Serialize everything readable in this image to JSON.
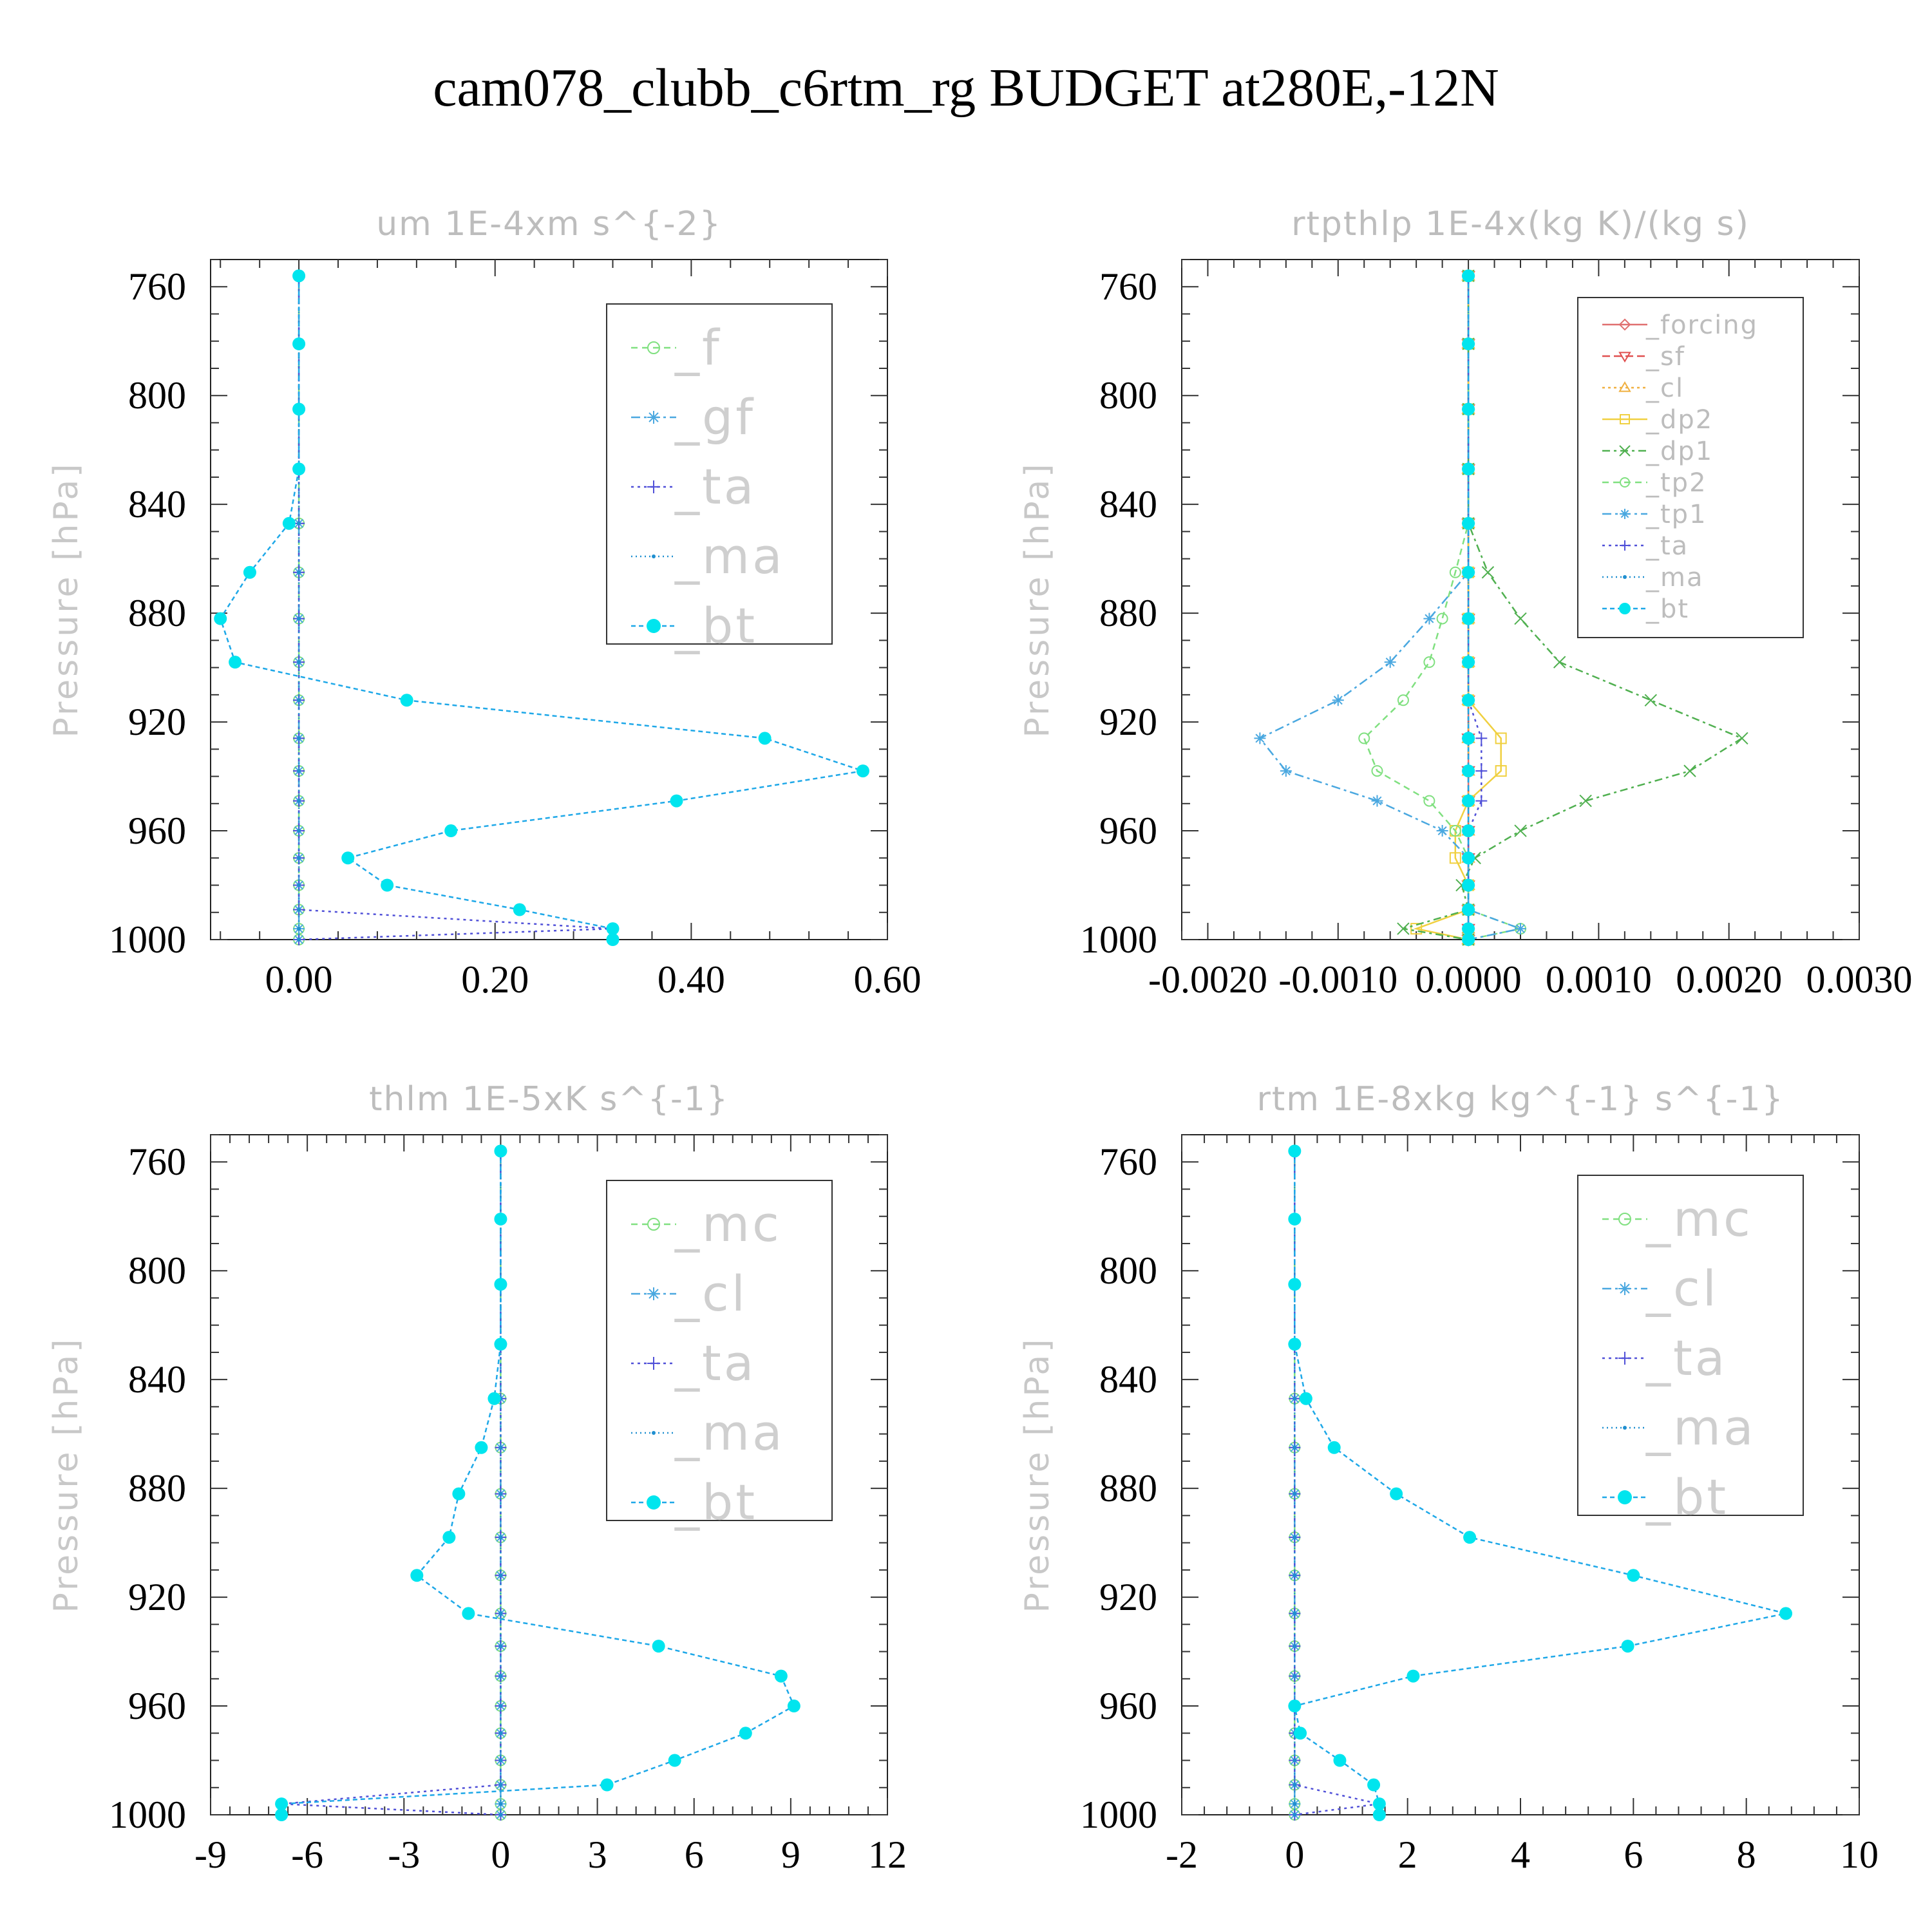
{
  "title": "cam078_clubb_c6rtm_rg  BUDGET at280E,-12N",
  "chart_data": [
    {
      "type": "line",
      "title": "um   1E-4xm s^{-2}",
      "ylabel": "Pressure [hPa]",
      "xlabel": "",
      "ylim": [
        750,
        1000
      ],
      "y_inverted": true,
      "xlim": [
        -0.09,
        0.6
      ],
      "xticks": [
        0,
        0.2,
        0.4,
        0.6
      ],
      "xtick_labels": [
        "0.00",
        "0.20",
        "0.40",
        "0.60"
      ],
      "yticks": [
        760,
        800,
        840,
        880,
        920,
        960,
        1000
      ],
      "ytick_labels": [
        "760",
        "800",
        "840",
        "880",
        "920",
        "960",
        "1000"
      ],
      "legend_placement": "top-right",
      "legend_size": "large",
      "levels": [
        756,
        781,
        805,
        827,
        847,
        865,
        882,
        898,
        912,
        926,
        938,
        949,
        960,
        970,
        980,
        989,
        996,
        1000
      ],
      "series": [
        {
          "name": "_f",
          "color": "#80e080",
          "dash": "10,7",
          "marker": "circle-open",
          "values": [
            0,
            0,
            0,
            0,
            0,
            0,
            0,
            0,
            0,
            0,
            0,
            0,
            0,
            0,
            0,
            0,
            0,
            0
          ]
        },
        {
          "name": "_gf",
          "color": "#4aa8e0",
          "dash": "14,6,4,6",
          "marker": "star",
          "values": [
            0,
            0,
            0,
            0,
            0,
            0,
            0,
            0,
            0,
            0,
            0,
            0,
            0,
            0,
            0,
            0,
            0,
            0
          ]
        },
        {
          "name": "_ta",
          "color": "#5050d8",
          "dash": "4,6",
          "marker": "plus",
          "values": [
            0,
            0,
            0,
            0,
            0,
            0,
            0,
            0,
            0,
            0,
            0,
            0,
            0,
            0,
            0,
            0,
            0.32,
            0
          ]
        },
        {
          "name": "_ma",
          "color": "#1f8fd0",
          "dash": "2,5",
          "marker": "dot",
          "values": [
            0,
            0,
            0,
            0,
            0,
            0,
            0,
            0,
            0,
            0,
            0,
            0,
            0,
            0,
            0,
            0,
            0,
            0
          ]
        },
        {
          "name": "_bt",
          "color": "#00e5ee",
          "line_color": "#1ea8e8",
          "dash": "7,5",
          "marker": "filled-circle",
          "values": [
            0,
            0,
            0,
            0,
            -0.01,
            -0.05,
            -0.08,
            -0.065,
            0.11,
            0.475,
            0.575,
            0.385,
            0.155,
            0.05,
            0.09,
            0.225,
            0.32,
            0.32
          ]
        }
      ]
    },
    {
      "type": "line",
      "title": "rtpthlp   1E-4x(kg K)/(kg s)",
      "ylabel": "Pressure [hPa]",
      "xlabel": "",
      "ylim": [
        750,
        1000
      ],
      "y_inverted": true,
      "xlim": [
        -0.0022,
        0.003
      ],
      "xticks": [
        -0.002,
        -0.001,
        0,
        0.001,
        0.002,
        0.003
      ],
      "xtick_labels": [
        "-0.0020",
        "-0.0010",
        "0.0000",
        "0.0010",
        "0.0020",
        "0.0030"
      ],
      "yticks": [
        760,
        800,
        840,
        880,
        920,
        960,
        1000
      ],
      "ytick_labels": [
        "760",
        "800",
        "840",
        "880",
        "920",
        "960",
        "1000"
      ],
      "legend_placement": "top-right",
      "legend_size": "small",
      "levels": [
        756,
        781,
        805,
        827,
        847,
        865,
        882,
        898,
        912,
        926,
        938,
        949,
        960,
        970,
        980,
        989,
        996,
        1000
      ],
      "series": [
        {
          "name": "_forcing",
          "color": "#e07070",
          "dash": "",
          "marker": "diamond",
          "values": [
            0,
            0,
            0,
            0,
            0,
            0,
            0,
            0,
            0,
            0,
            0,
            0,
            0,
            0,
            0,
            0,
            0,
            0
          ]
        },
        {
          "name": "_sf",
          "color": "#e05050",
          "dash": "12,6",
          "marker": "tri-down",
          "values": [
            0,
            0,
            0,
            0,
            0,
            0,
            0,
            0,
            0,
            0,
            0,
            0,
            0,
            0,
            0,
            0,
            0,
            0
          ]
        },
        {
          "name": "_cl",
          "color": "#f0b040",
          "dash": "4,5",
          "marker": "tri-up",
          "values": [
            0,
            0,
            0,
            0,
            0,
            0,
            0,
            0,
            0,
            0,
            0,
            0,
            0,
            0,
            0,
            0,
            0,
            0
          ]
        },
        {
          "name": "_dp2",
          "color": "#f0d040",
          "dash": "",
          "marker": "square-open",
          "values": [
            0,
            0,
            0,
            0,
            0,
            0,
            0,
            0,
            0,
            0.00025,
            0.00025,
            0,
            -0.0001,
            -0.0001,
            0,
            0,
            -0.0004,
            0
          ]
        },
        {
          "name": "_dp1",
          "color": "#50b050",
          "dash": "12,6,4,6",
          "marker": "x",
          "values": [
            0,
            0,
            0,
            0,
            0,
            0.00015,
            0.0004,
            0.0007,
            0.0014,
            0.0021,
            0.0017,
            0.0009,
            0.0004,
            5e-05,
            -5e-05,
            0,
            -0.0005,
            0
          ]
        },
        {
          "name": "_tp2",
          "color": "#80e080",
          "dash": "10,7",
          "marker": "circle-open",
          "values": [
            0,
            0,
            0,
            0,
            0,
            -0.0001,
            -0.0002,
            -0.0003,
            -0.0005,
            -0.0008,
            -0.0007,
            -0.0003,
            -0.0001,
            0,
            0,
            0,
            0.0004,
            0
          ]
        },
        {
          "name": "_tp1",
          "color": "#4aa8e0",
          "dash": "14,6,4,6",
          "marker": "star",
          "values": [
            0,
            0,
            0,
            0,
            0,
            0,
            -0.0003,
            -0.0006,
            -0.001,
            -0.0016,
            -0.0014,
            -0.0007,
            -0.0002,
            0,
            0,
            0,
            0.0004,
            0
          ]
        },
        {
          "name": "_ta",
          "color": "#5050d8",
          "dash": "4,6",
          "marker": "plus",
          "values": [
            0,
            0,
            0,
            0,
            0,
            0,
            0,
            0,
            0,
            0.0001,
            0.0001,
            0.0001,
            0,
            0,
            0,
            0,
            0,
            0
          ]
        },
        {
          "name": "_ma",
          "color": "#1f8fd0",
          "dash": "2,5",
          "marker": "dot",
          "values": [
            0,
            0,
            0,
            0,
            0,
            0,
            0,
            0,
            0,
            0,
            0,
            0,
            0,
            0,
            0,
            0,
            0,
            0
          ]
        },
        {
          "name": "_bt",
          "color": "#00e5ee",
          "line_color": "#1ea8e8",
          "dash": "7,5",
          "marker": "filled-circle",
          "values": [
            0,
            0,
            0,
            0,
            0,
            0,
            0,
            0,
            0,
            0,
            0,
            0,
            0,
            0,
            0,
            0,
            0,
            0
          ]
        }
      ]
    },
    {
      "type": "line",
      "title": "thlm   1E-5xK s^{-1}",
      "ylabel": "Pressure [hPa]",
      "xlabel": "",
      "ylim": [
        750,
        1000
      ],
      "y_inverted": true,
      "xlim": [
        -9,
        12
      ],
      "xticks": [
        -9,
        -6,
        -3,
        0,
        3,
        6,
        9,
        12
      ],
      "xtick_labels": [
        "-9",
        "-6",
        "-3",
        "0",
        "3",
        "6",
        "9",
        "12"
      ],
      "yticks": [
        760,
        800,
        840,
        880,
        920,
        960,
        1000
      ],
      "ytick_labels": [
        "760",
        "800",
        "840",
        "880",
        "920",
        "960",
        "1000"
      ],
      "legend_placement": "top-right",
      "legend_size": "large",
      "levels": [
        756,
        781,
        805,
        827,
        847,
        865,
        882,
        898,
        912,
        926,
        938,
        949,
        960,
        970,
        980,
        989,
        996,
        1000
      ],
      "series": [
        {
          "name": "_mc",
          "color": "#80e080",
          "dash": "10,7",
          "marker": "circle-open",
          "values": [
            0,
            0,
            0,
            0,
            0,
            0,
            0,
            0,
            0,
            0,
            0,
            0,
            0,
            0,
            0,
            0,
            0,
            0
          ]
        },
        {
          "name": "_cl",
          "color": "#4aa8e0",
          "dash": "14,6,4,6",
          "marker": "star",
          "values": [
            0,
            0,
            0,
            0,
            0,
            0,
            0,
            0,
            0,
            0,
            0,
            0,
            0,
            0,
            0,
            0,
            0,
            0
          ]
        },
        {
          "name": "_ta",
          "color": "#5050d8",
          "dash": "4,6",
          "marker": "plus",
          "values": [
            0,
            0,
            0,
            0,
            0,
            0,
            0,
            0,
            0,
            0,
            0,
            0,
            0,
            0,
            0,
            0,
            -6.8,
            0
          ]
        },
        {
          "name": "_ma",
          "color": "#1f8fd0",
          "dash": "2,5",
          "marker": "dot",
          "values": [
            0,
            0,
            0,
            0,
            0,
            0,
            0,
            0,
            0,
            0,
            0,
            0,
            0,
            0,
            0,
            0,
            0,
            0
          ]
        },
        {
          "name": "_bt",
          "color": "#00e5ee",
          "line_color": "#1ea8e8",
          "dash": "7,5",
          "marker": "filled-circle",
          "values": [
            0,
            0,
            0,
            0,
            -0.2,
            -0.6,
            -1.3,
            -1.6,
            -2.6,
            -1.0,
            4.9,
            8.7,
            9.1,
            7.6,
            5.4,
            3.3,
            -6.8,
            -6.8
          ]
        }
      ]
    },
    {
      "type": "line",
      "title": "rtm   1E-8xkg kg^{-1} s^{-1}",
      "ylabel": "Pressure [hPa]",
      "xlabel": "",
      "ylim": [
        750,
        1000
      ],
      "y_inverted": true,
      "xlim": [
        -2,
        10
      ],
      "xticks": [
        -2,
        0,
        2,
        4,
        6,
        8,
        10
      ],
      "xtick_labels": [
        "-2",
        "0",
        "2",
        "4",
        "6",
        "8",
        "10"
      ],
      "yticks": [
        760,
        800,
        840,
        880,
        920,
        960,
        1000
      ],
      "ytick_labels": [
        "760",
        "800",
        "840",
        "880",
        "920",
        "960",
        "1000"
      ],
      "legend_placement": "top-right",
      "legend_size": "large",
      "levels": [
        756,
        781,
        805,
        827,
        847,
        865,
        882,
        898,
        912,
        926,
        938,
        949,
        960,
        970,
        980,
        989,
        996,
        1000
      ],
      "series": [
        {
          "name": "_mc",
          "color": "#80e080",
          "dash": "10,7",
          "marker": "circle-open",
          "values": [
            0,
            0,
            0,
            0,
            0,
            0,
            0,
            0,
            0,
            0,
            0,
            0,
            0,
            0,
            0,
            0,
            0,
            0
          ]
        },
        {
          "name": "_cl",
          "color": "#4aa8e0",
          "dash": "14,6,4,6",
          "marker": "star",
          "values": [
            0,
            0,
            0,
            0,
            0,
            0,
            0,
            0,
            0,
            0,
            0,
            0,
            0,
            0,
            0,
            0,
            0,
            0
          ]
        },
        {
          "name": "_ta",
          "color": "#5050d8",
          "dash": "4,6",
          "marker": "plus",
          "values": [
            0,
            0,
            0,
            0,
            0,
            0,
            0,
            0,
            0,
            0,
            0,
            0,
            0,
            0,
            0,
            0,
            1.5,
            0
          ]
        },
        {
          "name": "_ma",
          "color": "#1f8fd0",
          "dash": "2,5",
          "marker": "dot",
          "values": [
            0,
            0,
            0,
            0,
            0,
            0,
            0,
            0,
            0,
            0,
            0,
            0,
            0,
            0,
            0,
            0,
            0,
            0
          ]
        },
        {
          "name": "_bt",
          "color": "#00e5ee",
          "line_color": "#1ea8e8",
          "dash": "7,5",
          "marker": "filled-circle",
          "values": [
            0,
            0,
            0,
            0,
            0.2,
            0.7,
            1.8,
            3.1,
            6.0,
            8.7,
            5.9,
            2.1,
            0,
            0.1,
            0.8,
            1.4,
            1.5,
            1.5
          ]
        }
      ]
    }
  ]
}
